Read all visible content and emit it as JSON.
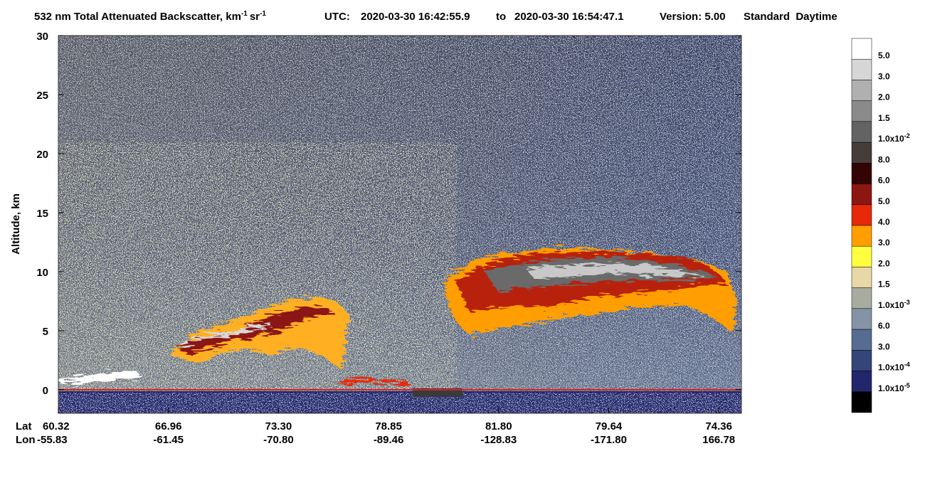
{
  "chart_data": {
    "type": "profile",
    "title": {
      "text": "532 nm Total Attenuated Backscatter, km",
      "sup1": "-1",
      "unit2": "sr",
      "sup2": "-1"
    },
    "utc_label": "UTC:",
    "start": "2020-03-30 16:42:55.9",
    "to": "to",
    "end": "2020-03-30 16:54:47.1",
    "version": "Version: 5.00",
    "mode": "Standard  Daytime",
    "y_label": "Altitude, km",
    "ylim": [
      -2,
      30
    ],
    "yticks": [
      0,
      5,
      10,
      15,
      20,
      25,
      30
    ],
    "lat_label": "Lat",
    "lon_label": "Lon",
    "lat": [
      "60.32",
      "66.96",
      "73.30",
      "78.85",
      "81.80",
      "79.64",
      "74.36"
    ],
    "lon": [
      "-55.83",
      "-61.45",
      "-70.80",
      "-89.46",
      "-128.83",
      "-171.80",
      "166.78"
    ],
    "colorbar": [
      {
        "color": "#ffffff",
        "label": "5.0"
      },
      {
        "color": "#d6d6d6",
        "label": "3.0"
      },
      {
        "color": "#b0b0b0",
        "label": "2.0"
      },
      {
        "color": "#8a8a8a",
        "label": "1.5"
      },
      {
        "color": "#636363",
        "label": "1.0x10",
        "exp": "-2"
      },
      {
        "color": "#463c38",
        "label": "8.0"
      },
      {
        "color": "#320404",
        "label": "6.0"
      },
      {
        "color": "#8c1612",
        "label": "5.0"
      },
      {
        "color": "#e8280a",
        "label": "4.0"
      },
      {
        "color": "#ff9e00",
        "label": "3.0"
      },
      {
        "color": "#ffff40",
        "label": "2.0"
      },
      {
        "color": "#e8d8a8",
        "label": "1.5"
      },
      {
        "color": "#a8aca0",
        "label": "1.0x10",
        "exp": "-3"
      },
      {
        "color": "#8494a6",
        "label": "6.0"
      },
      {
        "color": "#566c90",
        "label": "3.0"
      },
      {
        "color": "#34457a",
        "label": "1.0x10",
        "exp": "-4"
      },
      {
        "color": "#22266a",
        "label": "1.0x10",
        "exp": "-5"
      },
      {
        "color": "#000000"
      }
    ]
  }
}
